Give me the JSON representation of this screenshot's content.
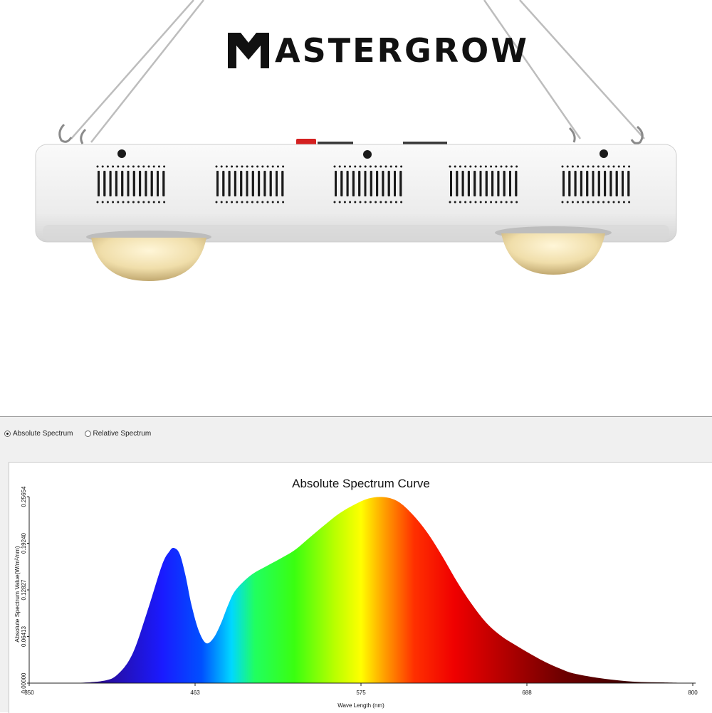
{
  "product": {
    "brand": "ASTERGROW",
    "brand_mark": "MG monogram logo"
  },
  "panel": {
    "radio_options": [
      {
        "label": "Absolute Spectrum",
        "selected": true
      },
      {
        "label": "Relative Spectrum",
        "selected": false
      }
    ]
  },
  "chart_data": {
    "type": "area",
    "title": "Absolute Spectrum Curve",
    "xlabel": "Wave Length (nm)",
    "ylabel": "Absolute Spectrum Value(W/m²/nm)",
    "xlim": [
      350,
      800
    ],
    "ylim": [
      0,
      0.25654
    ],
    "x_ticks": [
      "350",
      "463",
      "575",
      "688",
      "800"
    ],
    "y_ticks": [
      "0.00000",
      "0.06413",
      "0.12827",
      "0.19240",
      "0.25654"
    ],
    "fill": "visible-spectrum gradient by wavelength",
    "x": [
      380,
      400,
      410,
      420,
      430,
      440,
      445,
      448,
      452,
      456,
      460,
      465,
      470,
      475,
      480,
      485,
      490,
      500,
      510,
      520,
      530,
      540,
      550,
      560,
      570,
      580,
      590,
      600,
      610,
      620,
      630,
      640,
      650,
      660,
      670,
      680,
      690,
      700,
      710,
      720,
      740,
      760,
      780,
      800
    ],
    "y": [
      0.0,
      0.003,
      0.012,
      0.04,
      0.098,
      0.162,
      0.181,
      0.186,
      0.178,
      0.148,
      0.108,
      0.072,
      0.055,
      0.062,
      0.082,
      0.108,
      0.128,
      0.148,
      0.16,
      0.171,
      0.183,
      0.2,
      0.217,
      0.233,
      0.245,
      0.254,
      0.256,
      0.25,
      0.232,
      0.207,
      0.175,
      0.14,
      0.109,
      0.083,
      0.065,
      0.052,
      0.04,
      0.029,
      0.02,
      0.013,
      0.006,
      0.002,
      0.001,
      0.0
    ]
  }
}
